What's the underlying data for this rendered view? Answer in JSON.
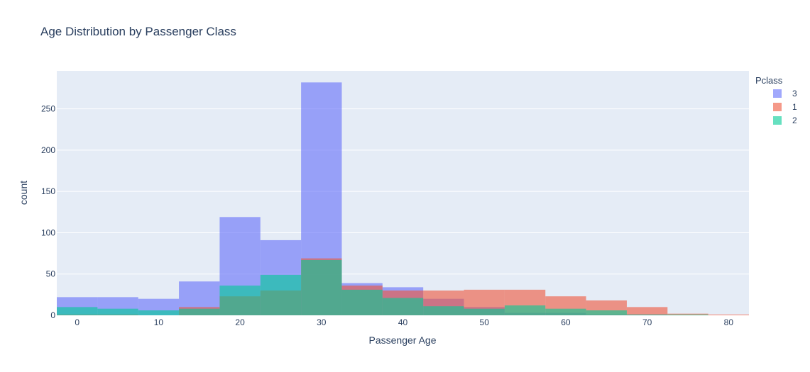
{
  "chart_data": {
    "type": "bar",
    "title": "Age Distribution by Passenger Class",
    "xlabel": "Passenger Age",
    "ylabel": "count",
    "xlim": [
      -2.5,
      82.5
    ],
    "ylim": [
      0,
      296
    ],
    "x_ticks": [
      0,
      10,
      20,
      30,
      40,
      50,
      60,
      70,
      80
    ],
    "y_ticks": [
      0,
      50,
      100,
      150,
      200,
      250
    ],
    "bin_width": 5,
    "bin_starts": [
      -2.5,
      2.5,
      7.5,
      12.5,
      17.5,
      22.5,
      27.5,
      32.5,
      37.5,
      42.5,
      47.5,
      52.5,
      57.5,
      62.5,
      67.5,
      72.5,
      77.5
    ],
    "barmode": "overlay",
    "opacity": 0.6,
    "grid": true,
    "legend_title": "Pclass",
    "legend_position": "top-right",
    "series": [
      {
        "name": "3",
        "color": "#636efa",
        "values": [
          22,
          22,
          20,
          41,
          119,
          91,
          282,
          39,
          34,
          20,
          10,
          3,
          3,
          1,
          1,
          0,
          0
        ]
      },
      {
        "name": "1",
        "color": "#ef553b",
        "values": [
          1,
          1,
          0,
          10,
          23,
          30,
          69,
          36,
          30,
          30,
          31,
          31,
          23,
          18,
          10,
          2,
          1
        ]
      },
      {
        "name": "2",
        "color": "#00cc96",
        "values": [
          10,
          8,
          6,
          8,
          36,
          49,
          67,
          31,
          21,
          11,
          8,
          12,
          8,
          6,
          1,
          1,
          0
        ]
      }
    ]
  }
}
